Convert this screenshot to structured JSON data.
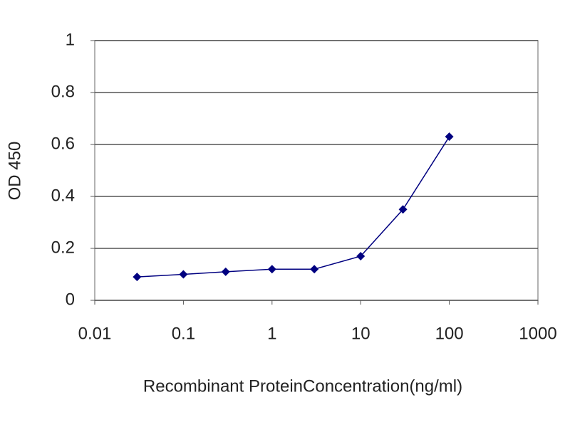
{
  "chart_data": {
    "type": "line",
    "x_label": "Recombinant ProteinConcentration(ng/ml)",
    "y_label": "OD 450",
    "x": [
      0.03,
      0.1,
      0.3,
      1,
      3,
      10,
      30,
      100
    ],
    "values": [
      0.09,
      0.1,
      0.11,
      0.12,
      0.12,
      0.17,
      0.35,
      0.63
    ],
    "color": "#000080",
    "x_scale": "log",
    "xlim": [
      0.01,
      1000
    ],
    "xticks": [
      0.01,
      0.1,
      1,
      10,
      100,
      1000
    ],
    "ylim": [
      0,
      1
    ],
    "yticks": [
      0,
      0.2,
      0.4,
      0.6,
      0.8,
      1
    ],
    "grid": true
  }
}
